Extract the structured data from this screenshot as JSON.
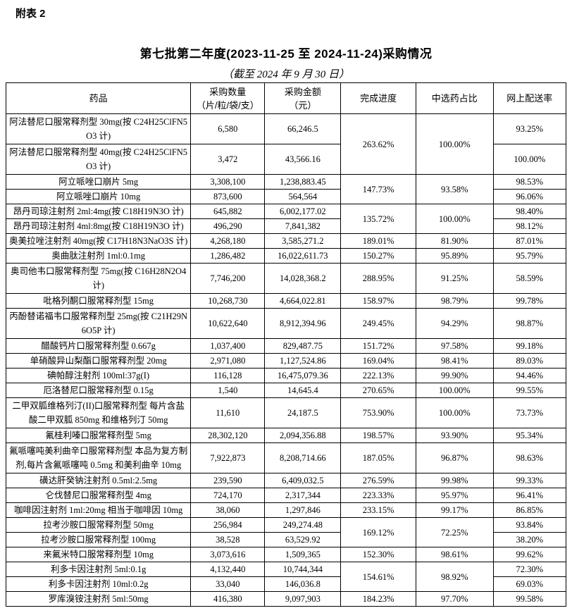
{
  "page": {
    "corner_label": "附表 2",
    "title": "第七批第二年度(2023-11-25 至 2024-11-24)采购情况",
    "subtitle": "（截至 2024 年 9 月 30 日）"
  },
  "table": {
    "headers": {
      "drug": "药品",
      "quantity_line1": "采购数量",
      "quantity_line2": "（片/粒/袋/支）",
      "amount_line1": "采购金额",
      "amount_line2": "（元）",
      "progress": "完成进度",
      "selected_ratio": "中选药占比",
      "delivery_rate": "网上配送率"
    },
    "rows": [
      {
        "drug": "阿法替尼口服常释剂型 30mg(按 C24H25ClFN5O3 计)",
        "qty": "6,580",
        "amount": "66,246.5",
        "progress": "263.62%",
        "ratio": "100.00%",
        "span": 2,
        "delivery": "93.25%",
        "tall": true
      },
      {
        "drug": "阿法替尼口服常释剂型 40mg(按 C24H25ClFN5O3 计)",
        "qty": "3,472",
        "amount": "43,566.16",
        "delivery": "100.00%",
        "tall": true
      },
      {
        "drug": "阿立哌唑口崩片 5mg",
        "qty": "3,308,100",
        "amount": "1,238,883.45",
        "progress": "147.73%",
        "ratio": "93.58%",
        "span": 2,
        "delivery": "98.53%"
      },
      {
        "drug": "阿立哌唑口崩片 10mg",
        "qty": "873,600",
        "amount": "564,564",
        "delivery": "96.06%"
      },
      {
        "drug": "昂丹司琼注射剂 2ml:4mg(按 C18H19N3O 计)",
        "qty": "645,882",
        "amount": "6,002,177.02",
        "progress": "135.72%",
        "ratio": "100.00%",
        "span": 2,
        "delivery": "98.40%"
      },
      {
        "drug": "昂丹司琼注射剂 4ml:8mg(按 C18H19N3O 计)",
        "qty": "496,290",
        "amount": "7,841,382",
        "delivery": "98.12%"
      },
      {
        "drug": "奥美拉唑注射剂 40mg(按 C17H18N3NaO3S 计)",
        "qty": "4,268,180",
        "amount": "3,585,271.2",
        "progress": "189.01%",
        "ratio": "81.90%",
        "delivery": "87.01%"
      },
      {
        "drug": "奥曲肽注射剂 1ml:0.1mg",
        "qty": "1,286,482",
        "amount": "16,022,611.73",
        "progress": "150.27%",
        "ratio": "95.89%",
        "delivery": "95.79%"
      },
      {
        "drug": "奥司他韦口服常释剂型 75mg(按 C16H28N2O4 计)",
        "qty": "7,746,200",
        "amount": "14,028,368.2",
        "progress": "288.95%",
        "ratio": "91.25%",
        "delivery": "58.59%",
        "tall": true
      },
      {
        "drug": "吡格列酮口服常释剂型 15mg",
        "qty": "10,268,730",
        "amount": "4,664,022.81",
        "progress": "158.97%",
        "ratio": "98.79%",
        "delivery": "99.78%"
      },
      {
        "drug": "丙酚替诺福韦口服常释剂型 25mg(按 C21H29N6O5P 计)",
        "qty": "10,622,640",
        "amount": "8,912,394.96",
        "progress": "249.45%",
        "ratio": "94.29%",
        "delivery": "98.87%",
        "tall": true
      },
      {
        "drug": "醋酸钙片口服常释剂型 0.667g",
        "qty": "1,037,400",
        "amount": "829,487.75",
        "progress": "151.72%",
        "ratio": "97.58%",
        "delivery": "99.18%"
      },
      {
        "drug": "单硝酸异山梨酯口服常释剂型 20mg",
        "qty": "2,971,080",
        "amount": "1,127,524.86",
        "progress": "169.04%",
        "ratio": "98.41%",
        "delivery": "89.03%"
      },
      {
        "drug": "碘帕醇注射剂 100ml:37g(I)",
        "qty": "116,128",
        "amount": "16,475,079.36",
        "progress": "222.13%",
        "ratio": "99.90%",
        "delivery": "94.46%"
      },
      {
        "drug": "厄洛替尼口服常释剂型 0.15g",
        "qty": "1,540",
        "amount": "14,645.4",
        "progress": "270.65%",
        "ratio": "100.00%",
        "delivery": "99.55%"
      },
      {
        "drug": "二甲双胍维格列汀(II)口服常释剂型 每片含盐酸二甲双胍 850mg 和维格列汀 50mg",
        "qty": "11,610",
        "amount": "24,187.5",
        "progress": "753.90%",
        "ratio": "100.00%",
        "delivery": "73.73%",
        "tall": true
      },
      {
        "drug": "氟桂利嗪口服常释剂型 5mg",
        "qty": "28,302,120",
        "amount": "2,094,356.88",
        "progress": "198.57%",
        "ratio": "93.90%",
        "delivery": "95.34%"
      },
      {
        "drug": "氟哌噻吨美利曲辛口服常释剂型 本品为复方制剂,每片含氟哌噻吨 0.5mg 和美利曲辛 10mg",
        "qty": "7,922,873",
        "amount": "8,208,714.66",
        "progress": "187.05%",
        "ratio": "96.87%",
        "delivery": "98.63%",
        "tall": true
      },
      {
        "drug": "磺达肝癸钠注射剂 0.5ml:2.5mg",
        "qty": "239,590",
        "amount": "6,409,032.5",
        "progress": "276.59%",
        "ratio": "99.98%",
        "delivery": "99.33%"
      },
      {
        "drug": "仑伐替尼口服常释剂型 4mg",
        "qty": "724,170",
        "amount": "2,317,344",
        "progress": "223.33%",
        "ratio": "95.97%",
        "delivery": "96.41%"
      },
      {
        "drug": "咖啡因注射剂 1ml:20mg 相当于咖啡因 10mg",
        "qty": "38,060",
        "amount": "1,297,846",
        "progress": "233.15%",
        "ratio": "99.17%",
        "delivery": "86.85%"
      },
      {
        "drug": "拉考沙胺口服常释剂型 50mg",
        "qty": "256,984",
        "amount": "249,274.48",
        "progress": "169.12%",
        "ratio": "72.25%",
        "span": 2,
        "delivery": "93.84%"
      },
      {
        "drug": "拉考沙胺口服常释剂型 100mg",
        "qty": "38,528",
        "amount": "63,529.92",
        "delivery": "38.20%"
      },
      {
        "drug": "来氟米特口服常释剂型 10mg",
        "qty": "3,073,616",
        "amount": "1,509,365",
        "progress": "152.30%",
        "ratio": "98.61%",
        "delivery": "99.62%"
      },
      {
        "drug": "利多卡因注射剂 5ml:0.1g",
        "qty": "4,132,440",
        "amount": "10,744,344",
        "progress": "154.61%",
        "ratio": "98.92%",
        "span": 2,
        "delivery": "72.30%"
      },
      {
        "drug": "利多卡因注射剂 10ml:0.2g",
        "qty": "33,040",
        "amount": "146,036.8",
        "delivery": "69.03%"
      },
      {
        "drug": "罗库溴铵注射剂 5ml:50mg",
        "qty": "416,380",
        "amount": "9,097,903",
        "progress": "184.23%",
        "ratio": "97.70%",
        "delivery": "99.58%"
      }
    ]
  }
}
